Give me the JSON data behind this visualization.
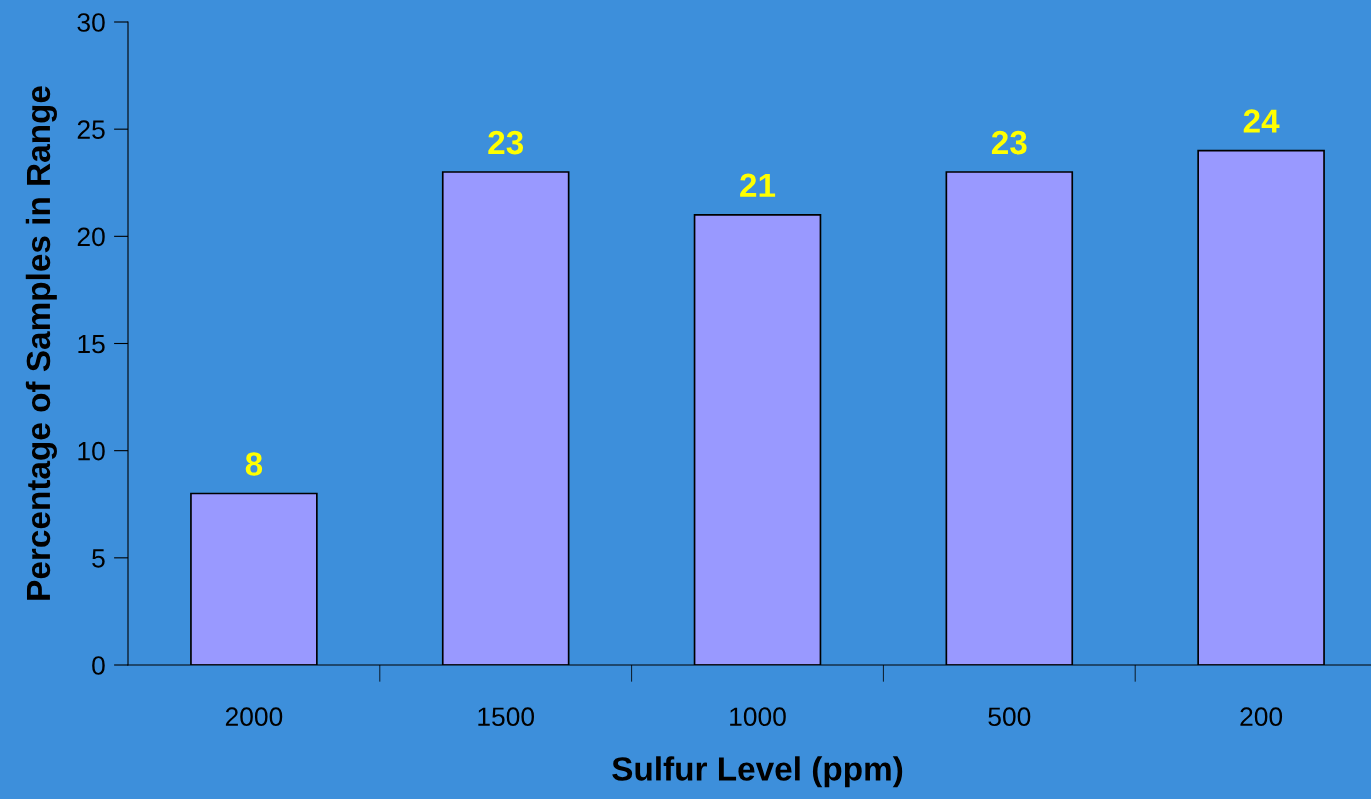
{
  "chart_data": {
    "type": "bar",
    "xlabel": "Sulfur Level (ppm)",
    "ylabel": "Percentage of Samples in Range",
    "categories": [
      "2000",
      "1500",
      "1000",
      "500",
      "200"
    ],
    "values": [
      8,
      23,
      21,
      23,
      24
    ],
    "color": "#9999ff",
    "ylim": [
      0,
      30
    ],
    "yticks": [
      0,
      5,
      10,
      15,
      20,
      25,
      30
    ],
    "grid": false,
    "data_labels": true
  }
}
